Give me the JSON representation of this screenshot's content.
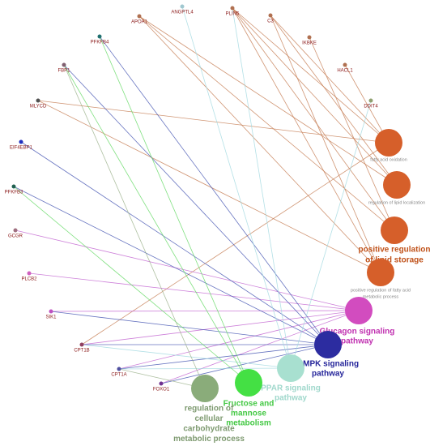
{
  "genes": [
    {
      "label": "APOA1"
    },
    {
      "label": "ANGPTL4"
    },
    {
      "label": "PLIN5"
    },
    {
      "label": "C3"
    },
    {
      "label": "IKBKE"
    },
    {
      "label": "HACL1"
    },
    {
      "label": "DDIT4"
    },
    {
      "label": "PFKFB4"
    },
    {
      "label": "FBP1"
    },
    {
      "label": "MLYCD"
    },
    {
      "label": "EIF4EBP1"
    },
    {
      "label": "PFKFB3"
    },
    {
      "label": "GCGR"
    },
    {
      "label": "PLCB2"
    },
    {
      "label": "SIK1"
    },
    {
      "label": "CPT1B"
    },
    {
      "label": "CPT1A"
    },
    {
      "label": "FOXO1"
    }
  ],
  "terms": [
    {
      "lines": [
        "fatty acid oxidation"
      ]
    },
    {
      "lines": [
        "regulation of lipid localization"
      ]
    },
    {
      "lines": [
        "positive regulation",
        "of lipid storage"
      ]
    },
    {
      "lines": [
        "positive regulation of fatty acid",
        "metabolic process"
      ]
    },
    {
      "lines": [
        "Glucagon signaling",
        "pathway"
      ]
    },
    {
      "lines": [
        "AMPK signaling",
        "pathway"
      ]
    },
    {
      "lines": [
        "PPAR signaling",
        "pathway"
      ]
    },
    {
      "lines": [
        "Fructose and",
        "mannose",
        "metabolism"
      ]
    },
    {
      "lines": [
        "regulation of",
        "cellular",
        "carbohydrate",
        "metabolic process"
      ]
    }
  ]
}
